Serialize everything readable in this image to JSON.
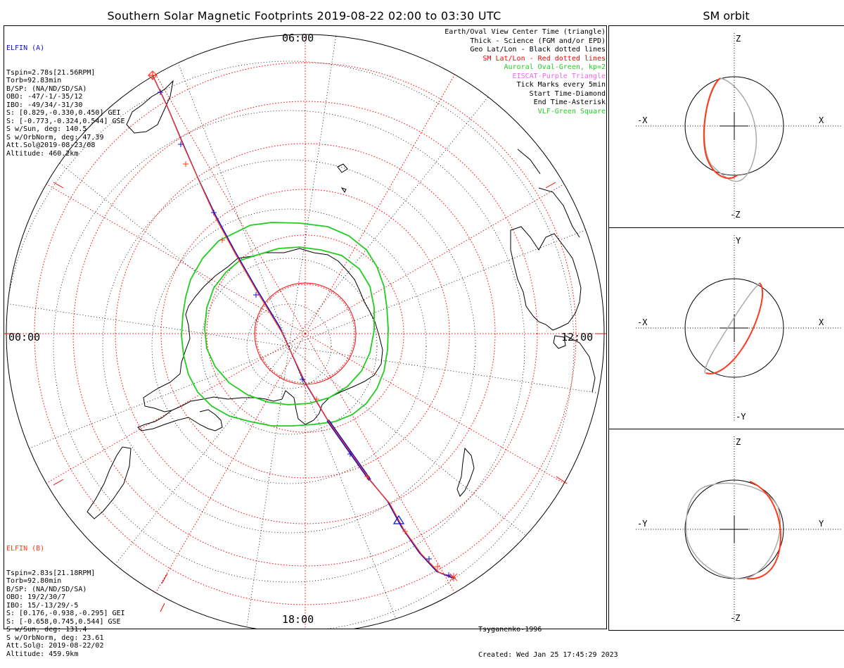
{
  "title": "Southern Solar Magnetic Footprints 2019-08-22 02:00 to 03:30 UTC",
  "orbit_title": "SM orbit",
  "clock_labels": {
    "top": "06:00",
    "left": "00:00",
    "right": "12:00",
    "bottom": "18:00"
  },
  "elfin_a": {
    "name": "ELFIN (A)",
    "lines": [
      "Tspin=2.78s[21.56RPM]",
      "Torb=92.83min",
      "B/SP: (NA/ND/SD/SA)",
      "OBO: -47/-1/-35/12",
      "IBO: -49/34/-31/30",
      "S: [0.829,-0.330,0.450] GEI",
      "S: [-0.773,-0.324,0.544] GSE",
      "S w/Sun, deg: 140.5",
      "S w/OrbNorm, deg: 47.39",
      "Att.Sol@2019-08-23/08",
      "Altitude: 460.2km"
    ]
  },
  "elfin_b": {
    "name": "ELFIN (B)",
    "lines": [
      "Tspin=2.83s[21.18RPM]",
      "Torb=92.80min",
      "B/SP: (NA/ND/SD/SA)",
      "OBO: 19/2/30/7",
      "IBO: 15/-13/29/-5",
      "S: [0.176,-0.938,-0.295] GEI",
      "S: [-0.658,0.745,0.544] GSE",
      "S w/Sun, deg: 131.4",
      "S w/OrbNorm, deg: 23.61",
      "Att.Sol@: 2019-08-22/02",
      "Altitude: 459.9km"
    ]
  },
  "legend": [
    {
      "text": "Earth/Oval View Center Time (triangle)",
      "color": "#000000"
    },
    {
      "text": "Thick - Science (FGM and/or EPD)",
      "color": "#000000"
    },
    {
      "text": "Geo Lat/Lon - Black dotted lines",
      "color": "#000000"
    },
    {
      "text": "SM Lat/Lon - Red dotted lines",
      "color": "#ff0000"
    },
    {
      "text": "Auroral Oval-Green, kp=2",
      "color": "#22cc22"
    },
    {
      "text": "EISCAT-Purple Triangle",
      "color": "#ee66ee"
    },
    {
      "text": "Tick Marks every 5min",
      "color": "#000000"
    },
    {
      "text": "Start Time-Diamond",
      "color": "#000000"
    },
    {
      "text": "End Time-Asterisk",
      "color": "#000000"
    },
    {
      "text": "VLF-Green Square",
      "color": "#22cc22"
    }
  ],
  "credit": {
    "model": "Tsyganenko-1996",
    "created": "Created: Wed Jan 25 17:45:29 2023"
  },
  "orbit_panels": [
    {
      "top": "Z",
      "bottom": "-Z",
      "left": "-X",
      "right": "X"
    },
    {
      "top": "Y",
      "bottom": "-Y",
      "left": "-X",
      "right": "X"
    },
    {
      "top": "Z",
      "bottom": "-Z",
      "left": "-Y",
      "right": "Y"
    }
  ],
  "colors": {
    "elfin_a": "#1010d0",
    "elfin_b": "#ff3a1a",
    "oval": "#22cc22",
    "sm_grid": "#ff0000",
    "geo_grid": "#000000",
    "orbit_other": "#aaaaaa"
  }
}
